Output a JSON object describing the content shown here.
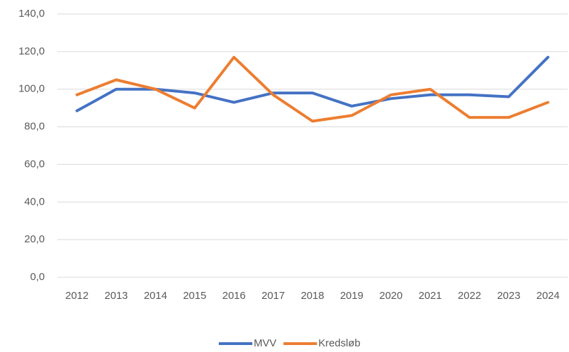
{
  "chart_data": {
    "type": "line",
    "categories": [
      "2012",
      "2013",
      "2014",
      "2015",
      "2016",
      "2017",
      "2018",
      "2019",
      "2020",
      "2021",
      "2022",
      "2023",
      "2024"
    ],
    "series": [
      {
        "name": "MVV",
        "color": "#4472c4",
        "values": [
          88.5,
          100,
          100,
          98,
          93,
          98,
          98,
          91,
          95,
          97,
          97,
          96,
          117
        ]
      },
      {
        "name": "Kredsløb",
        "color": "#ed7d31",
        "values": [
          97,
          105,
          100,
          90,
          117,
          97,
          83,
          86,
          97,
          100,
          85,
          85,
          93
        ]
      }
    ],
    "ylim": [
      0,
      140
    ],
    "yticks": [
      {
        "value": 0,
        "label": "0,0"
      },
      {
        "value": 20,
        "label": "20,0"
      },
      {
        "value": 40,
        "label": "40,0"
      },
      {
        "value": 60,
        "label": "60,0"
      },
      {
        "value": 80,
        "label": "80,0"
      },
      {
        "value": 100,
        "label": "100,0"
      },
      {
        "value": 120,
        "label": "120,0"
      },
      {
        "value": 140,
        "label": "140,0"
      }
    ],
    "grid": true,
    "legend": "bottom"
  }
}
